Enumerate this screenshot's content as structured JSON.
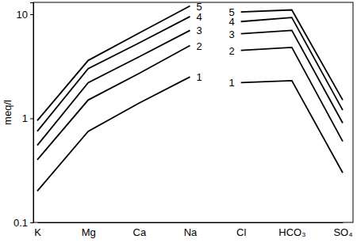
{
  "chart_data": {
    "type": "line",
    "y_label": "meq/l",
    "categories": [
      "K",
      "Mg",
      "Ca",
      "Na",
      "Cl",
      "HCO₃",
      "SO₄"
    ],
    "log": "y",
    "ylim": [
      0.1,
      13
    ],
    "yticks": [
      0.1,
      1,
      10
    ],
    "grid": false,
    "color": "#000000",
    "series": [
      {
        "name": "1",
        "values": [
          0.2,
          0.75,
          1.4,
          2.5,
          null,
          null,
          null
        ]
      },
      {
        "name": "2",
        "values": [
          0.4,
          1.5,
          2.7,
          5.0,
          null,
          null,
          null
        ]
      },
      {
        "name": "3",
        "values": [
          0.55,
          2.2,
          3.9,
          7.0,
          null,
          null,
          null
        ]
      },
      {
        "name": "4",
        "values": [
          0.75,
          3.0,
          5.3,
          9.5,
          null,
          null,
          null
        ]
      },
      {
        "name": "5",
        "values": [
          0.95,
          3.6,
          6.6,
          12.0,
          null,
          null,
          null
        ]
      },
      {
        "name": "1",
        "values": [
          null,
          null,
          null,
          null,
          2.2,
          2.3,
          0.3
        ]
      },
      {
        "name": "2",
        "values": [
          null,
          null,
          null,
          null,
          4.5,
          4.8,
          0.6
        ]
      },
      {
        "name": "3",
        "values": [
          null,
          null,
          null,
          null,
          6.5,
          7.0,
          0.9
        ]
      },
      {
        "name": "4",
        "values": [
          null,
          null,
          null,
          null,
          8.5,
          9.3,
          1.2
        ]
      },
      {
        "name": "5",
        "values": [
          null,
          null,
          null,
          null,
          10.5,
          11.0,
          1.5
        ]
      }
    ]
  }
}
